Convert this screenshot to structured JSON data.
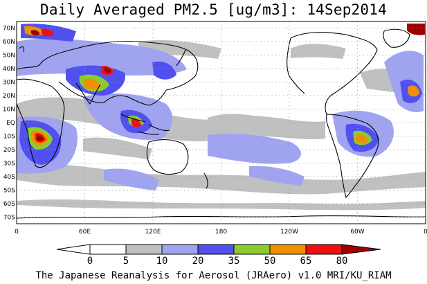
{
  "title": "Daily Averaged PM2.5 [ug/m3]: 14Sep2014",
  "footer": "The Japanese Reanalysis for Aerosol (JRAero) v1.0 MRI/KU_RIAM",
  "lat_labels": [
    "70N",
    "60N",
    "50N",
    "40N",
    "30N",
    "20N",
    "10N",
    "EQ",
    "10S",
    "20S",
    "30S",
    "40S",
    "50S",
    "60S",
    "70S"
  ],
  "lon_labels": [
    "0",
    "60E",
    "120E",
    "180",
    "120W",
    "60W",
    "0"
  ],
  "colorbar": {
    "bins": [
      {
        "label": "0",
        "color": "#ffffff"
      },
      {
        "label": "5",
        "color": "#ffffff"
      },
      {
        "label": "10",
        "color": "#c0c0c0"
      },
      {
        "label": "20",
        "color": "#a0a4f0"
      },
      {
        "label": "35",
        "color": "#5050ee"
      },
      {
        "label": "50",
        "color": "#8ccc2c"
      },
      {
        "label": "65",
        "color": "#f09000"
      },
      {
        "label": "80",
        "color": "#ee1010"
      }
    ],
    "overflow_color": "#a00000"
  },
  "colors": {
    "grid": "#a0a0a0",
    "coast": "#000000",
    "gray": "#c0c0c0",
    "light_blue": "#a0a4f0",
    "blue": "#5050ee",
    "green": "#8ccc2c",
    "orange": "#f09000",
    "red": "#ee1010",
    "darkred": "#a00000"
  }
}
